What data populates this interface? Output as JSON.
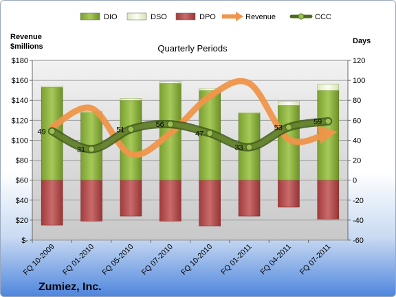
{
  "chart_data": {
    "type": "bar",
    "title": "Quarterly Periods",
    "company": "Zumiez, Inc.",
    "y_left_label_line1": "Revenue",
    "y_left_label_line2": "$millions",
    "y_right_label": "Days",
    "y_left_range": [
      0,
      180
    ],
    "y_left_ticks": [
      "$-",
      "$20",
      "$40",
      "$60",
      "$80",
      "$100",
      "$120",
      "$140",
      "$160",
      "$180"
    ],
    "y_right_range": [
      -60,
      120
    ],
    "y_right_ticks": [
      "-60",
      "-40",
      "-20",
      "0",
      "20",
      "40",
      "60",
      "80",
      "100",
      "120"
    ],
    "grid": true,
    "legend_position": "top",
    "categories": [
      "FQ 10-2009",
      "FQ 01-2010",
      "FQ 05-2010",
      "FQ 07-2010",
      "FQ 10-2010",
      "FQ 01-2011",
      "FQ 04-2011",
      "FQ 07-2011"
    ],
    "series": [
      {
        "name": "DIO",
        "axis": "right",
        "color": "#8db33f",
        "values": [
          93,
          68,
          80,
          97,
          90,
          67,
          75,
          90
        ]
      },
      {
        "name": "DSO",
        "axis": "right",
        "color": "#eef5d8",
        "values": [
          1,
          1,
          2,
          2,
          2,
          1,
          4,
          6
        ]
      },
      {
        "name": "DPO",
        "axis": "right",
        "color": "#b54a4c",
        "values": [
          -45,
          -41,
          -36,
          -41,
          -46,
          -36,
          -27,
          -39
        ]
      },
      {
        "name": "Revenue",
        "axis": "left",
        "color": "#f0954a",
        "values": [
          113,
          132,
          86,
          107,
          144,
          157,
          101,
          107
        ]
      },
      {
        "name": "CCC",
        "axis": "right",
        "color": "#5f7a2a",
        "values": [
          49,
          31,
          51,
          56,
          47,
          33,
          53,
          59
        ]
      }
    ],
    "ccc_labels": [
      "49",
      "31",
      "51",
      "56",
      "47",
      "33",
      "53",
      "59"
    ]
  }
}
